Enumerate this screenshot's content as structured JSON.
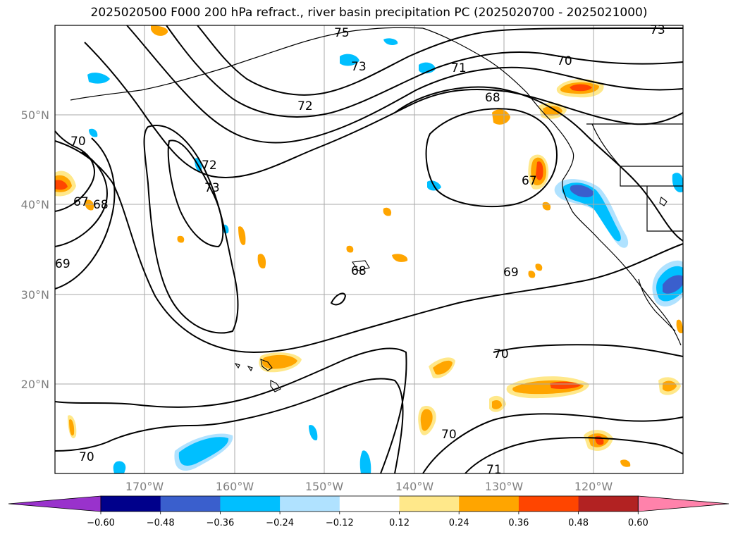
{
  "title": "2025020500 F000 200 hPa refract., river basin precipitation PC (2025020700 - 2025021000)",
  "map": {
    "lon_labels": [
      "170°W",
      "160°W",
      "150°W",
      "140°W",
      "130°W",
      "120°W"
    ],
    "lat_labels": [
      "50°N",
      "40°N",
      "30°N",
      "20°N"
    ],
    "contour_labels": [
      "75",
      "73",
      "72",
      "71",
      "70",
      "68",
      "67",
      "73",
      "72",
      "70",
      "67",
      "68",
      "69",
      "68",
      "69",
      "70",
      "70",
      "70",
      "71",
      "73"
    ]
  },
  "colorbar": {
    "ticks": [
      "−0.60",
      "−0.48",
      "−0.36",
      "−0.24",
      "−0.12",
      "0.12",
      "0.24",
      "0.36",
      "0.48",
      "0.60"
    ],
    "colors": [
      "#9932cc",
      "#00008b",
      "#3a5fcd",
      "#00bfff",
      "#b0e2ff",
      "#ffffff",
      "#ffe88a",
      "#ffa500",
      "#ff4500",
      "#b22222",
      "#ff82ab"
    ]
  }
}
